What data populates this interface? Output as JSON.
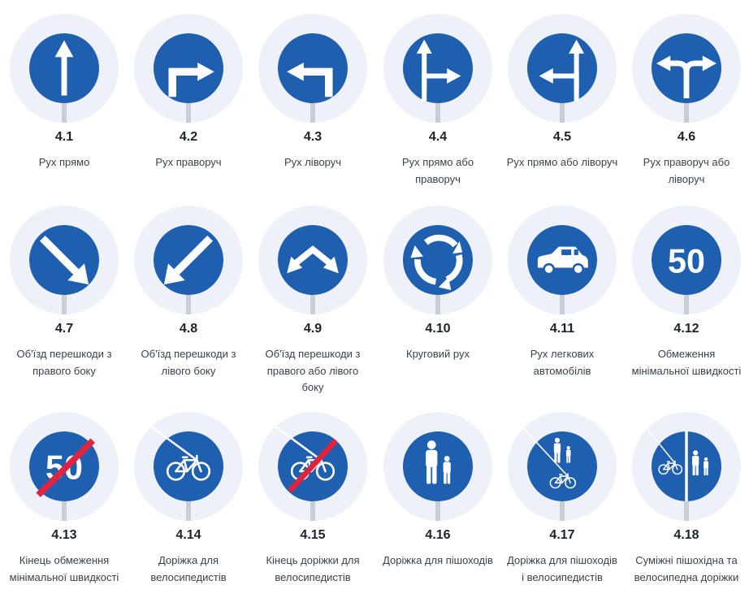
{
  "colors": {
    "halo": "#eef1f8",
    "sign_blue": "#1f5fb0",
    "post": "#c9cdd4",
    "strike": "#e0243f",
    "white": "#ffffff"
  },
  "signs": [
    {
      "code": "4.1",
      "name": "Рух прямо",
      "icon": "arrow-straight-icon"
    },
    {
      "code": "4.2",
      "name": "Рух праворуч",
      "icon": "arrow-right-turn-icon"
    },
    {
      "code": "4.3",
      "name": "Рух ліворуч",
      "icon": "arrow-left-turn-icon"
    },
    {
      "code": "4.4",
      "name": "Рух прямо або праворуч",
      "icon": "arrow-straight-right-icon"
    },
    {
      "code": "4.5",
      "name": "Рух прямо або ліворуч",
      "icon": "arrow-straight-left-icon"
    },
    {
      "code": "4.6",
      "name": "Рух праворуч або ліворуч",
      "icon": "arrow-right-left-icon"
    },
    {
      "code": "4.7",
      "name": "Об'їзд перешкоди з правого боку",
      "icon": "arrow-down-right-icon"
    },
    {
      "code": "4.8",
      "name": "Об'їзд перешкоди з лівого боку",
      "icon": "arrow-down-left-icon"
    },
    {
      "code": "4.9",
      "name": "Об'їзд перешкоди з правого або лівого боку",
      "icon": "arrow-down-both-icon"
    },
    {
      "code": "4.10",
      "name": "Круговий рух",
      "icon": "roundabout-icon"
    },
    {
      "code": "4.11",
      "name": "Рух легкових автомобілів",
      "icon": "car-icon"
    },
    {
      "code": "4.12",
      "name": "Обмеження мінімальної швидкості",
      "icon": "min-speed-icon",
      "number": "50"
    },
    {
      "code": "4.13",
      "name": "Кінець обмеження мінімальної швидкості",
      "icon": "min-speed-end-icon",
      "number": "50"
    },
    {
      "code": "4.14",
      "name": "Доріжка для велосипедистів",
      "icon": "bicycle-icon"
    },
    {
      "code": "4.15",
      "name": "Кінець доріжки для велосипедистів",
      "icon": "bicycle-end-icon"
    },
    {
      "code": "4.16",
      "name": "Доріжка для пішоходів",
      "icon": "pedestrians-icon"
    },
    {
      "code": "4.17",
      "name": "Доріжка для пішоходів і велосипедистів",
      "icon": "pedestrians-bicycle-icon"
    },
    {
      "code": "4.18",
      "name": "Суміжні пішохідна та велосипедна доріжки",
      "icon": "split-path-icon"
    }
  ]
}
